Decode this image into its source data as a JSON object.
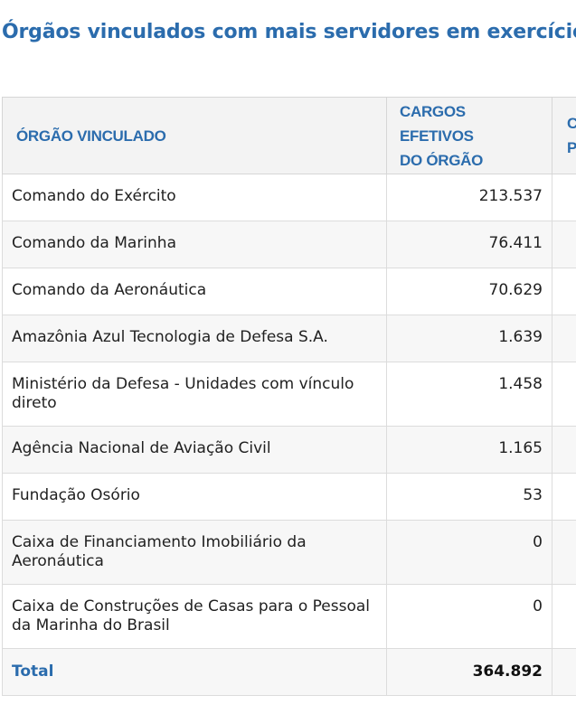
{
  "title": "Órgãos vinculados com mais servidores em exercício",
  "table": {
    "headers": [
      "ÓRGÃO VINCULADO",
      "CARGOS EFETIVOS DO ÓRGÃO",
      "CARGOS PO"
    ],
    "header_lines": {
      "col2": [
        "CARGOS EFETIVOS",
        "DO ÓRGÃO"
      ],
      "col3": [
        "CA",
        "PO"
      ]
    },
    "rows": [
      {
        "orgao": "Comando do Exército",
        "cargos_efetivos": "213.537"
      },
      {
        "orgao": "Comando da Marinha",
        "cargos_efetivos": "76.411"
      },
      {
        "orgao": "Comando da Aeronáutica",
        "cargos_efetivos": "70.629"
      },
      {
        "orgao": "Amazônia Azul Tecnologia de Defesa S.A.",
        "cargos_efetivos": "1.639"
      },
      {
        "orgao": "Ministério da Defesa - Unidades com vínculo direto",
        "cargos_efetivos": "1.458"
      },
      {
        "orgao": "Agência Nacional de Aviação Civil",
        "cargos_efetivos": "1.165"
      },
      {
        "orgao": "Fundação Osório",
        "cargos_efetivos": "53"
      },
      {
        "orgao": "Caixa de Financiamento Imobiliário da Aeronáutica",
        "cargos_efetivos": "0"
      },
      {
        "orgao": "Caixa de Construções de Casas para o Pessoal da Marinha do Brasil",
        "cargos_efetivos": "0"
      }
    ],
    "total": {
      "label": "Total",
      "cargos_efetivos": "364.892"
    }
  }
}
